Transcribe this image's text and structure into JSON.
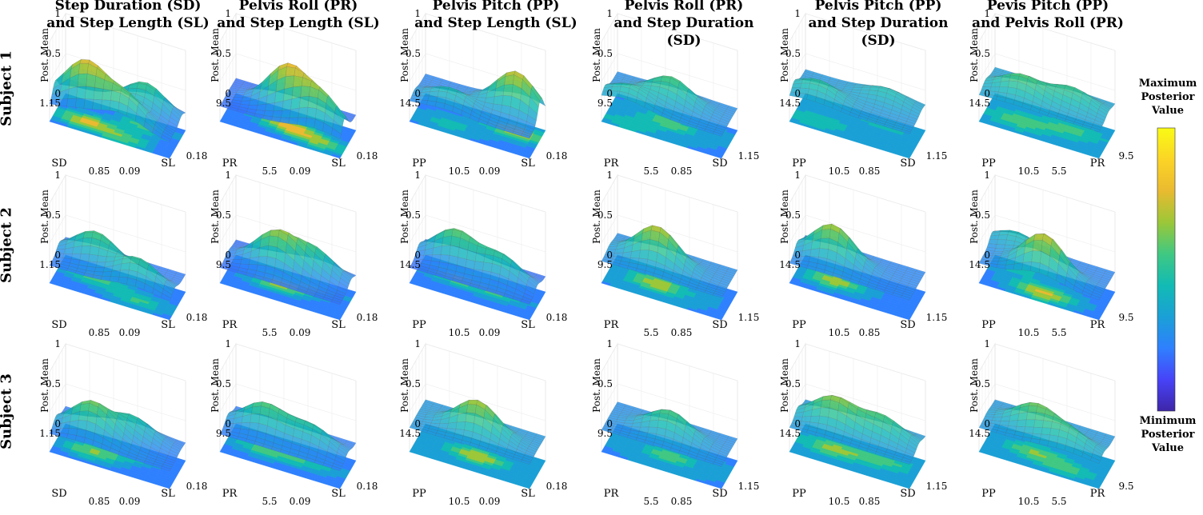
{
  "columns": [
    {
      "line1": "Step Duration (SD)",
      "line2": "and Step Length (SL)",
      "x_label": "SL",
      "y_label": "SD",
      "x_ticks": [
        "0.09",
        "0.18"
      ],
      "y_ticks": [
        "0.85",
        "1.15"
      ]
    },
    {
      "line1": "Pelvis Roll (PR)",
      "line2": "and Step Length (SL)",
      "x_label": "SL",
      "y_label": "PR",
      "x_ticks": [
        "0.09",
        "0.18"
      ],
      "y_ticks": [
        "5.5",
        "9.5"
      ]
    },
    {
      "line1": "Pelvis Pitch (PP)",
      "line2": "and Step Length (SL)",
      "x_label": "SL",
      "y_label": "PP",
      "x_ticks": [
        "0.09",
        "0.18"
      ],
      "y_ticks": [
        "10.5",
        "14.5"
      ]
    },
    {
      "line1": "Pelvis Roll (PR)",
      "line2": "and Step Duration (SD)",
      "x_label": "SD",
      "y_label": "PR",
      "x_ticks": [
        "0.85",
        "1.15"
      ],
      "y_ticks": [
        "5.5",
        "9.5"
      ]
    },
    {
      "line1": "Pelvis Pitch (PP)",
      "line2": "and Step Duration (SD)",
      "x_label": "SD",
      "y_label": "PP",
      "x_ticks": [
        "0.85",
        "1.15"
      ],
      "y_ticks": [
        "10.5",
        "14.5"
      ]
    },
    {
      "line1": "Pevis Pitch (PP)",
      "line2": "and Pelvis Roll (PR)",
      "x_label": "PR",
      "y_label": "PP",
      "x_ticks": [
        "5.5",
        "9.5"
      ],
      "y_ticks": [
        "10.5",
        "14.5"
      ]
    }
  ],
  "rows": [
    "Subject 1",
    "Subject 2",
    "Subject 3"
  ],
  "z_label": "Post. Mean",
  "z_ticks": [
    "0",
    "0.5",
    "1"
  ],
  "colorbar": {
    "top_label": [
      "Maximum",
      "Posterior",
      "Value"
    ],
    "bottom_label": [
      "Minimum",
      "Posterior",
      "Value"
    ],
    "colors": [
      "#3e26a8",
      "#4743f8",
      "#2f80fe",
      "#1aa0d6",
      "#12bbb4",
      "#40c882",
      "#9bc738",
      "#eaba30",
      "#fbd426",
      "#f9fb15"
    ]
  },
  "chart_data": {
    "type": "surface",
    "description_grid": "6 columns x 3 rows of 3D surfaces (posterior mean, 0-1) with filled contour projections",
    "z_range": [
      0,
      1
    ],
    "panels": [
      {
        "row": 0,
        "col": 0,
        "peaks": [
          [
            0.25,
            0.35,
            0.55
          ],
          [
            0.7,
            0.75,
            0.35
          ],
          [
            0.6,
            0.2,
            0.35
          ]
        ],
        "base": 0.35
      },
      {
        "row": 0,
        "col": 1,
        "peaks": [
          [
            0.5,
            0.5,
            0.55
          ],
          [
            0.8,
            0.3,
            0.4
          ]
        ],
        "base": 0.35
      },
      {
        "row": 0,
        "col": 2,
        "peaks": [
          [
            0.8,
            0.7,
            0.5
          ],
          [
            0.3,
            0.3,
            0.2
          ]
        ],
        "base": 0.45
      },
      {
        "row": 0,
        "col": 3,
        "peaks": [
          [
            0.5,
            0.6,
            0.3
          ],
          [
            0.2,
            0.2,
            0.2
          ]
        ],
        "base": 0.5
      },
      {
        "row": 0,
        "col": 4,
        "peaks": [
          [
            0.2,
            0.3,
            0.2
          ],
          [
            0.7,
            0.8,
            0.15
          ]
        ],
        "base": 0.55
      },
      {
        "row": 0,
        "col": 5,
        "peaks": [
          [
            0.3,
            0.4,
            0.25
          ],
          [
            0.7,
            0.6,
            0.2
          ]
        ],
        "base": 0.6
      },
      {
        "row": 1,
        "col": 0,
        "peaks": [
          [
            0.3,
            0.6,
            0.35
          ],
          [
            0.7,
            0.3,
            0.3
          ]
        ],
        "base": 0.4
      },
      {
        "row": 1,
        "col": 1,
        "peaks": [
          [
            0.4,
            0.5,
            0.45
          ],
          [
            0.7,
            0.7,
            0.3
          ]
        ],
        "base": 0.35
      },
      {
        "row": 1,
        "col": 2,
        "peaks": [
          [
            0.3,
            0.6,
            0.4
          ],
          [
            0.7,
            0.5,
            0.3
          ]
        ],
        "base": 0.35
      },
      {
        "row": 1,
        "col": 3,
        "peaks": [
          [
            0.4,
            0.5,
            0.45
          ]
        ],
        "base": 0.5
      },
      {
        "row": 1,
        "col": 4,
        "peaks": [
          [
            0.3,
            0.5,
            0.45
          ]
        ],
        "base": 0.45
      },
      {
        "row": 1,
        "col": 5,
        "peaks": [
          [
            0.5,
            0.3,
            0.5
          ],
          [
            0.2,
            0.8,
            0.2
          ]
        ],
        "base": 0.45
      },
      {
        "row": 2,
        "col": 0,
        "peaks": [
          [
            0.3,
            0.4,
            0.4
          ],
          [
            0.6,
            0.7,
            0.25
          ]
        ],
        "base": 0.4
      },
      {
        "row": 2,
        "col": 1,
        "peaks": [
          [
            0.3,
            0.5,
            0.35
          ],
          [
            0.7,
            0.5,
            0.25
          ]
        ],
        "base": 0.4
      },
      {
        "row": 2,
        "col": 2,
        "peaks": [
          [
            0.5,
            0.5,
            0.4
          ]
        ],
        "base": 0.55
      },
      {
        "row": 2,
        "col": 3,
        "peaks": [
          [
            0.5,
            0.5,
            0.3
          ]
        ],
        "base": 0.5
      },
      {
        "row": 2,
        "col": 4,
        "peaks": [
          [
            0.3,
            0.5,
            0.35
          ],
          [
            0.7,
            0.6,
            0.25
          ]
        ],
        "base": 0.55
      },
      {
        "row": 2,
        "col": 5,
        "peaks": [
          [
            0.4,
            0.5,
            0.3
          ],
          [
            0.7,
            0.3,
            0.2
          ]
        ],
        "base": 0.55
      }
    ]
  }
}
